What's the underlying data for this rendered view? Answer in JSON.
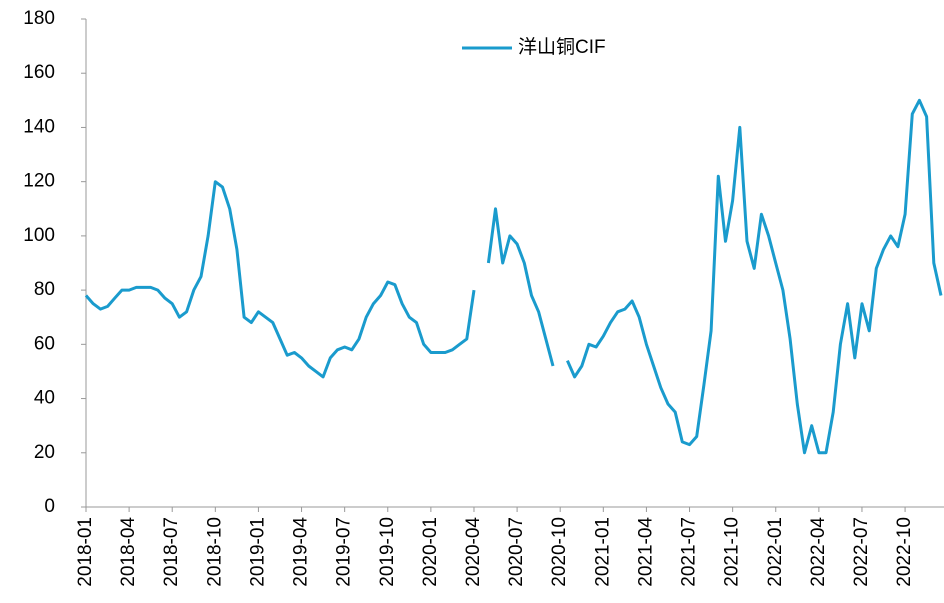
{
  "chart_data": {
    "type": "line",
    "categories": [
      "2018-01",
      null,
      null,
      null,
      null,
      null,
      "2018-04",
      null,
      null,
      null,
      null,
      null,
      "2018-07",
      null,
      null,
      null,
      null,
      null,
      "2018-10",
      null,
      null,
      null,
      null,
      null,
      "2019-01",
      null,
      null,
      null,
      null,
      null,
      "2019-04",
      null,
      null,
      null,
      null,
      null,
      "2019-07",
      null,
      null,
      null,
      null,
      null,
      "2019-10",
      null,
      null,
      null,
      null,
      null,
      "2020-01",
      null,
      null,
      null,
      null,
      null,
      "2020-04",
      null,
      null,
      null,
      null,
      null,
      "2020-07",
      null,
      null,
      null,
      null,
      null,
      "2020-10",
      null,
      null,
      null,
      null,
      null,
      "2021-01",
      null,
      null,
      null,
      null,
      null,
      "2021-04",
      null,
      null,
      null,
      null,
      null,
      "2021-07",
      null,
      null,
      null,
      null,
      null,
      "2021-10",
      null,
      null,
      null,
      null,
      null,
      "2022-01",
      null,
      null,
      null,
      null,
      null,
      "2022-04",
      null,
      null,
      null,
      null,
      null,
      "2022-07",
      null,
      null,
      null,
      null,
      null,
      "2022-10",
      null,
      null,
      null,
      null,
      null
    ],
    "series": [
      {
        "name": "洋山铜CIF",
        "color": "#1a9bcd",
        "values": [
          78,
          75,
          73,
          74,
          77,
          80,
          80,
          81,
          81,
          81,
          80,
          77,
          75,
          70,
          72,
          80,
          85,
          100,
          120,
          118,
          110,
          95,
          70,
          68,
          72,
          70,
          68,
          62,
          56,
          57,
          55,
          52,
          50,
          48,
          55,
          58,
          59,
          58,
          62,
          70,
          75,
          78,
          83,
          82,
          75,
          70,
          68,
          60,
          57,
          57,
          57,
          58,
          60,
          62,
          80,
          null,
          90,
          110,
          90,
          100,
          97,
          90,
          78,
          72,
          62,
          52,
          null,
          54,
          48,
          52,
          60,
          59,
          63,
          68,
          72,
          73,
          76,
          70,
          60,
          52,
          44,
          38,
          35,
          24,
          23,
          26,
          45,
          65,
          122,
          98,
          113,
          140,
          98,
          88,
          108,
          100,
          90,
          80,
          62,
          38,
          20,
          30,
          20,
          20,
          35,
          60,
          75,
          55,
          75,
          65,
          88,
          95,
          100,
          96,
          108,
          145,
          150,
          144,
          90,
          78
        ]
      }
    ],
    "ylim": [
      0,
      180
    ],
    "yticks": [
      0,
      20,
      40,
      60,
      80,
      100,
      120,
      140,
      160,
      180
    ],
    "legend": "top"
  }
}
